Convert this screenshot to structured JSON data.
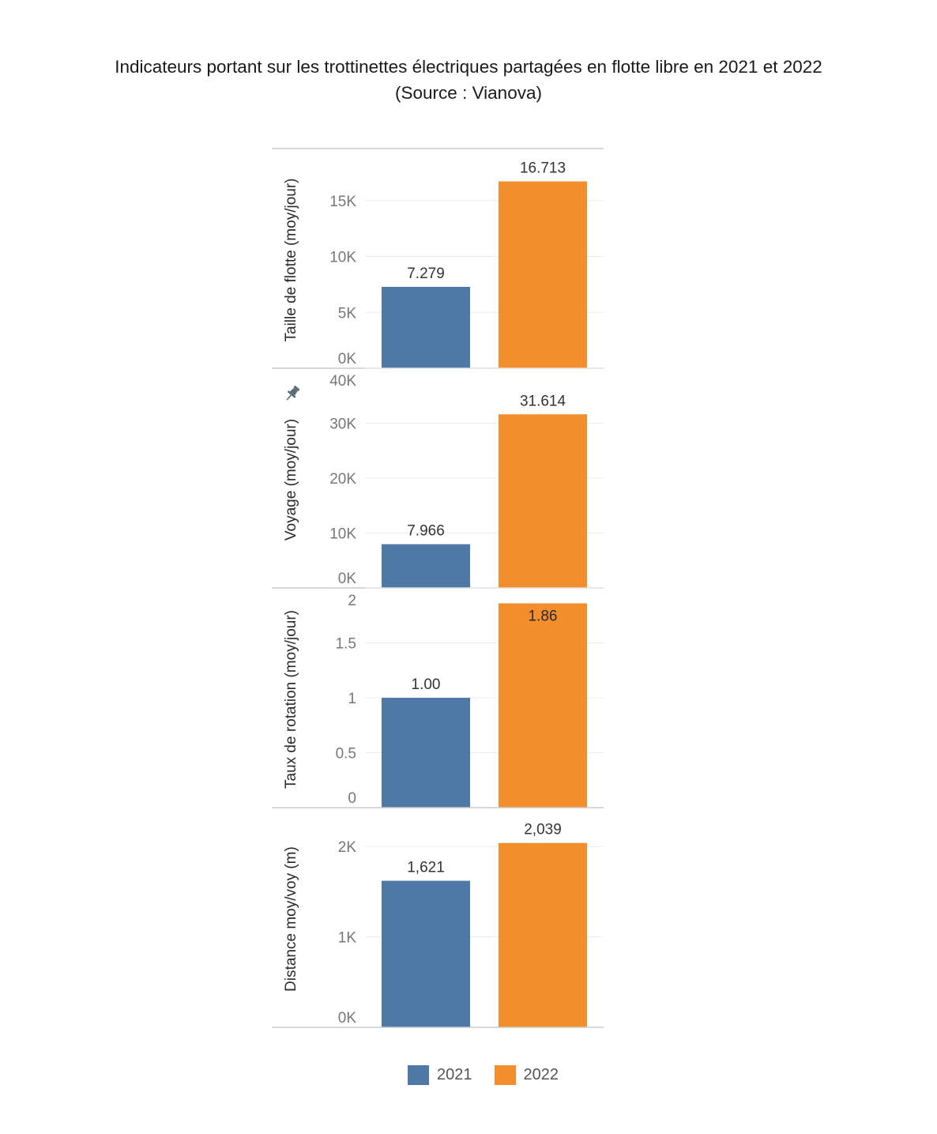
{
  "title_line1": "Indicateurs portant sur les trottinettes électriques partagées en flotte libre en 2021 et 2022",
  "title_line2": "(Source : Vianova)",
  "colors": {
    "2021": "#4e79a7",
    "2022": "#f28e2b",
    "axis_text": "#777777",
    "grid": "#ececec",
    "frame": "#cccccc"
  },
  "legend": {
    "items": [
      {
        "label": "2021",
        "color": "#4e79a7"
      },
      {
        "label": "2022",
        "color": "#f28e2b"
      }
    ],
    "placement": "bottom"
  },
  "pin_icon": "pushpin-icon",
  "chart_data": [
    {
      "type": "bar",
      "ylabel": "Taille de flotte (moy/jour)",
      "categories": [
        "2021",
        "2022"
      ],
      "values": [
        7279,
        16713
      ],
      "data_labels": [
        "7.279",
        "16.713"
      ],
      "ylim": [
        0,
        19650
      ],
      "ticks": [
        0,
        5000,
        10000,
        15000
      ],
      "tick_labels": [
        "0K",
        "5K",
        "10K",
        "15K"
      ],
      "grid": true
    },
    {
      "type": "bar",
      "ylabel": "Voyage (moy/jour)",
      "categories": [
        "2021",
        "2022"
      ],
      "values": [
        7966,
        31614
      ],
      "data_labels": [
        "7.966",
        "31.614"
      ],
      "ylim": [
        0,
        40000
      ],
      "ticks": [
        0,
        10000,
        20000,
        30000,
        40000
      ],
      "tick_labels": [
        "0K",
        "10K",
        "20K",
        "30K",
        "40K"
      ],
      "grid": true
    },
    {
      "type": "bar",
      "ylabel": "Taux de rotation (moy/jour)",
      "categories": [
        "2021",
        "2022"
      ],
      "values": [
        1.0,
        1.86
      ],
      "data_labels": [
        "1.00",
        "1.86"
      ],
      "ylim": [
        0,
        2
      ],
      "ticks": [
        0,
        0.5,
        1,
        1.5,
        2
      ],
      "tick_labels": [
        "0",
        "0.5",
        "1",
        "1.5",
        "2"
      ],
      "grid": true
    },
    {
      "type": "bar",
      "ylabel": "Distance moy/voy (m)",
      "categories": [
        "2021",
        "2022"
      ],
      "values": [
        1621,
        2039
      ],
      "data_labels": [
        "1,621",
        "2,039"
      ],
      "ylim": [
        0,
        2430
      ],
      "ticks": [
        0,
        1000,
        2000
      ],
      "tick_labels": [
        "0K",
        "1K",
        "2K"
      ],
      "grid": true
    }
  ]
}
